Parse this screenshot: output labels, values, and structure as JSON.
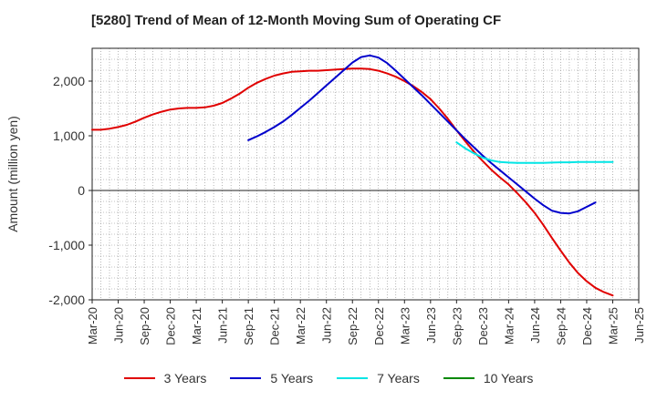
{
  "chart_data": {
    "type": "line",
    "title": "[5280]  Trend of Mean of 12-Month Moving Sum of Operating CF",
    "xlabel": "",
    "ylabel": "Amount (million yen)",
    "ylim": [
      -2000,
      2600
    ],
    "yticks": [
      -2000,
      -1000,
      0,
      1000,
      2000
    ],
    "ytick_labels": [
      "-2,000",
      "-1,000",
      "0",
      "1,000",
      "2,000"
    ],
    "xlim": [
      "Mar-20",
      "Jun-25"
    ],
    "xtick_labels": [
      "Mar-20",
      "Jun-20",
      "Sep-20",
      "Dec-20",
      "Mar-21",
      "Jun-21",
      "Sep-21",
      "Dec-21",
      "Mar-22",
      "Jun-22",
      "Sep-22",
      "Dec-22",
      "Mar-23",
      "Jun-23",
      "Sep-23",
      "Dec-23",
      "Mar-24",
      "Jun-24",
      "Sep-24",
      "Dec-24",
      "Mar-25",
      "Jun-25"
    ],
    "grid": true,
    "legend_position": "bottom",
    "series": [
      {
        "name": "3 Years",
        "color": "#e00000",
        "start": "Mar-20",
        "values": [
          1110,
          1110,
          1130,
          1160,
          1200,
          1260,
          1330,
          1390,
          1440,
          1480,
          1500,
          1510,
          1510,
          1520,
          1550,
          1600,
          1680,
          1770,
          1880,
          1970,
          2040,
          2100,
          2140,
          2170,
          2180,
          2190,
          2190,
          2200,
          2210,
          2220,
          2230,
          2230,
          2220,
          2190,
          2140,
          2080,
          2000,
          1910,
          1800,
          1670,
          1500,
          1310,
          1100,
          900,
          710,
          540,
          380,
          240,
          110,
          -50,
          -220,
          -410,
          -630,
          -870,
          -1100,
          -1320,
          -1510,
          -1660,
          -1780,
          -1860,
          -1920
        ]
      },
      {
        "name": "5 Years",
        "color": "#0000cc",
        "start": "Sep-21",
        "values": [
          920,
          990,
          1070,
          1160,
          1260,
          1380,
          1510,
          1640,
          1780,
          1920,
          2060,
          2200,
          2340,
          2440,
          2470,
          2430,
          2330,
          2190,
          2040,
          1890,
          1740,
          1580,
          1420,
          1260,
          1100,
          940,
          790,
          640,
          500,
          370,
          240,
          110,
          -20,
          -150,
          -270,
          -370,
          -410,
          -420,
          -380,
          -300,
          -220
        ]
      },
      {
        "name": "7 Years",
        "color": "#00e5e5",
        "start": "Sep-23",
        "values": [
          880,
          770,
          680,
          600,
          550,
          520,
          510,
          505,
          505,
          505,
          505,
          510,
          515,
          515,
          520,
          520,
          520,
          520,
          520
        ]
      },
      {
        "name": "10 Years",
        "color": "#008800",
        "start": "Sep-23",
        "values": []
      }
    ]
  }
}
